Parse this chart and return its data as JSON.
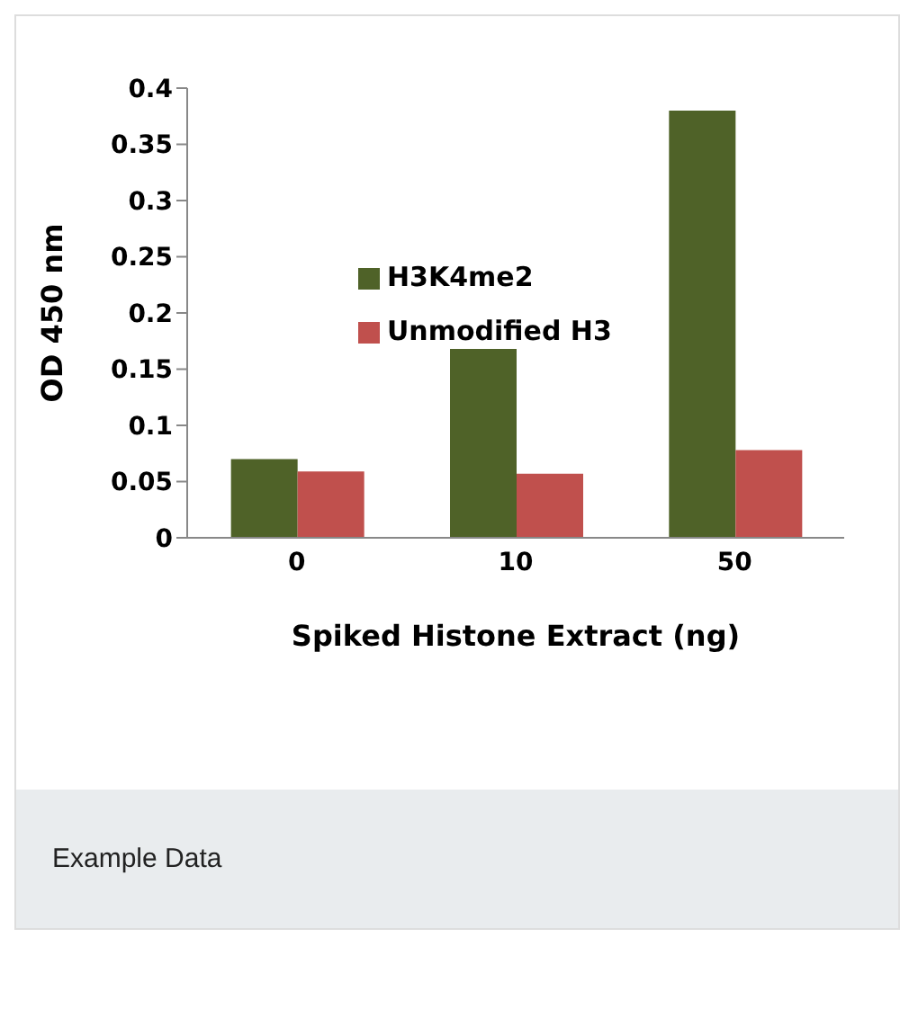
{
  "chart_data": {
    "type": "bar",
    "xlabel": "Spiked Histone Extract (ng)",
    "ylabel": "OD 450 nm",
    "categories": [
      "0",
      "10",
      "50"
    ],
    "series": [
      {
        "name": "H3K4me2",
        "color": "#4f6228",
        "values": [
          0.07,
          0.168,
          0.38
        ]
      },
      {
        "name": "Unmodified H3",
        "color": "#c0504d",
        "values": [
          0.059,
          0.057,
          0.078
        ]
      }
    ],
    "ylim": [
      0,
      0.4
    ],
    "yticks": [
      0,
      0.05,
      0.1,
      0.15,
      0.2,
      0.25,
      0.3,
      0.35,
      0.4
    ],
    "grid": false,
    "legend": "top left",
    "annotations": [
      "Example Data"
    ]
  }
}
